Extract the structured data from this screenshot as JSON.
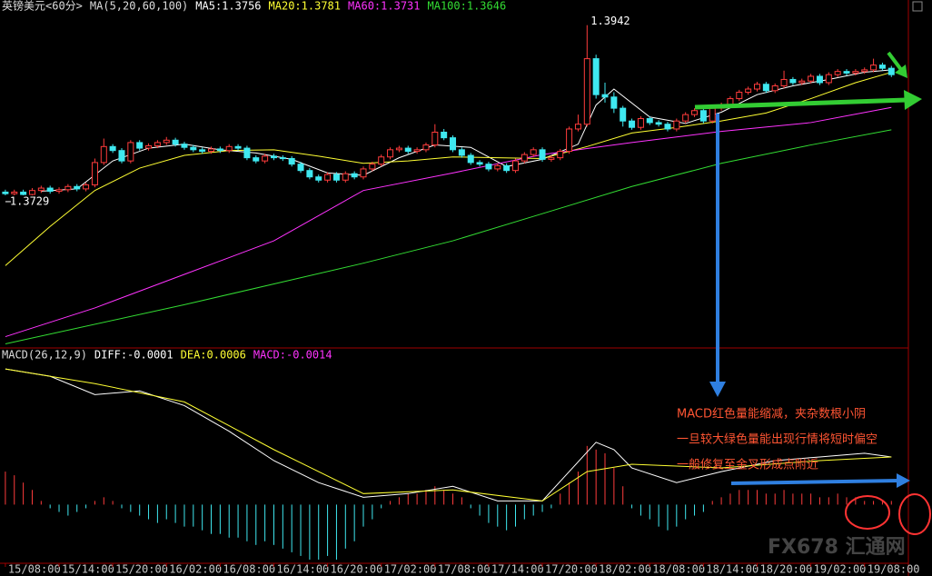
{
  "chart_data": [
    {
      "type": "candlestick",
      "title": "英镑美元<60分>",
      "indicator": "MA(5,20,60,100)",
      "xlim": [
        -0.6,
        100.9
      ],
      "xticks": [
        {
          "value": 0,
          "label": "15/08:00"
        },
        {
          "value": 6,
          "label": "15/14:00"
        },
        {
          "value": 12,
          "label": "15/20:00"
        },
        {
          "value": 18,
          "label": "16/02:00"
        },
        {
          "value": 24,
          "label": "16/08:00"
        },
        {
          "value": 30,
          "label": "16/14:00"
        },
        {
          "value": 36,
          "label": "16/20:00"
        },
        {
          "value": 42,
          "label": "17/02:00"
        },
        {
          "value": 48,
          "label": "17/08:00"
        },
        {
          "value": 54,
          "label": "17/14:00"
        },
        {
          "value": 60,
          "label": "17/20:00"
        },
        {
          "value": 66,
          "label": "18/02:00"
        },
        {
          "value": 72,
          "label": "18/08:00"
        },
        {
          "value": 78,
          "label": "18/14:00"
        },
        {
          "value": 84,
          "label": "18/20:00"
        },
        {
          "value": 90,
          "label": "19/02:00"
        },
        {
          "value": 96,
          "label": "19/08:00"
        }
      ],
      "ylim": [
        1.3539,
        1.3953
      ],
      "up_color": "#ff3c3c",
      "down_color": "#3fe8f0",
      "open": [
        1.3733,
        1.3731,
        1.3733,
        1.373,
        1.3735,
        1.3738,
        1.3734,
        1.3736,
        1.374,
        1.3737,
        1.3742,
        1.377,
        1.379,
        1.3785,
        1.3772,
        1.3795,
        1.3788,
        1.3791,
        1.3795,
        1.3798,
        1.3793,
        1.3789,
        1.3786,
        1.3784,
        1.3787,
        1.3785,
        1.379,
        1.3788,
        1.3776,
        1.3772,
        1.3778,
        1.3776,
        1.3775,
        1.3768,
        1.376,
        1.3752,
        1.3748,
        1.3755,
        1.3748,
        1.3756,
        1.3752,
        1.3762,
        1.3768,
        1.3777,
        1.3786,
        1.3788,
        1.3784,
        1.3786,
        1.3792,
        1.3808,
        1.3801,
        1.3786,
        1.3779,
        1.377,
        1.3768,
        1.3762,
        1.3766,
        1.376,
        1.3772,
        1.378,
        1.3786,
        1.3774,
        1.3776,
        1.3784,
        1.3812,
        1.3818,
        1.39,
        1.3855,
        1.3852,
        1.3838,
        1.3822,
        1.3814,
        1.3825,
        1.382,
        1.3818,
        1.3812,
        1.3822,
        1.383,
        1.3835,
        1.3822,
        1.3838,
        1.3842,
        1.385,
        1.3858,
        1.3862,
        1.3868,
        1.386,
        1.3866,
        1.3874,
        1.387,
        1.3872,
        1.3878,
        1.387,
        1.388,
        1.3884,
        1.3882,
        1.3884,
        1.3886,
        1.3892,
        1.3888
      ],
      "high": [
        1.3736,
        1.3736,
        1.3736,
        1.3738,
        1.3741,
        1.3741,
        1.3739,
        1.3743,
        1.3743,
        1.3745,
        1.3775,
        1.38,
        1.3793,
        1.3788,
        1.3798,
        1.3798,
        1.3794,
        1.3798,
        1.3802,
        1.3801,
        1.3796,
        1.3792,
        1.3789,
        1.379,
        1.379,
        1.3793,
        1.3793,
        1.3791,
        1.3779,
        1.3781,
        1.3781,
        1.3779,
        1.3778,
        1.3771,
        1.3763,
        1.3755,
        1.3758,
        1.3758,
        1.3759,
        1.3759,
        1.3765,
        1.3771,
        1.378,
        1.3789,
        1.3791,
        1.3791,
        1.3789,
        1.3795,
        1.3818,
        1.3812,
        1.3804,
        1.3789,
        1.3782,
        1.3773,
        1.3771,
        1.3769,
        1.3769,
        1.3775,
        1.3783,
        1.3789,
        1.3789,
        1.3779,
        1.3787,
        1.3815,
        1.383,
        1.3942,
        1.3905,
        1.387,
        1.3858,
        1.3841,
        1.3825,
        1.3828,
        1.3828,
        1.3823,
        1.3821,
        1.3825,
        1.3833,
        1.3838,
        1.3838,
        1.3841,
        1.3845,
        1.3853,
        1.3861,
        1.3865,
        1.3871,
        1.3871,
        1.3869,
        1.3885,
        1.3877,
        1.3875,
        1.3881,
        1.3881,
        1.3883,
        1.3887,
        1.3887,
        1.3887,
        1.3889,
        1.39,
        1.3895,
        1.3891
      ],
      "low": [
        1.3729,
        1.3729,
        1.3729,
        1.3729,
        1.3732,
        1.3731,
        1.3731,
        1.3733,
        1.3734,
        1.3734,
        1.3739,
        1.3767,
        1.3782,
        1.3769,
        1.3769,
        1.3785,
        1.3785,
        1.3788,
        1.3792,
        1.379,
        1.3786,
        1.3783,
        1.3781,
        1.3781,
        1.3782,
        1.3782,
        1.3785,
        1.3773,
        1.3769,
        1.3769,
        1.3773,
        1.3772,
        1.3765,
        1.3757,
        1.3749,
        1.3745,
        1.3745,
        1.3745,
        1.3745,
        1.3749,
        1.3749,
        1.3759,
        1.3765,
        1.3774,
        1.3783,
        1.3781,
        1.3781,
        1.3783,
        1.3789,
        1.3798,
        1.3783,
        1.3776,
        1.3767,
        1.3765,
        1.3759,
        1.3759,
        1.3757,
        1.3757,
        1.3769,
        1.3777,
        1.3771,
        1.3771,
        1.3773,
        1.3781,
        1.3809,
        1.3815,
        1.385,
        1.3845,
        1.3832,
        1.3815,
        1.3811,
        1.3811,
        1.3817,
        1.3815,
        1.3809,
        1.3809,
        1.3819,
        1.3827,
        1.3819,
        1.3819,
        1.3835,
        1.3839,
        1.3847,
        1.3855,
        1.3859,
        1.3857,
        1.3857,
        1.3863,
        1.3867,
        1.3867,
        1.3869,
        1.3867,
        1.3867,
        1.3877,
        1.3879,
        1.3879,
        1.3881,
        1.3883,
        1.3885,
        1.3877
      ],
      "close": [
        1.3731,
        1.3733,
        1.373,
        1.3735,
        1.3738,
        1.3734,
        1.3736,
        1.374,
        1.3737,
        1.3742,
        1.377,
        1.379,
        1.3785,
        1.3772,
        1.3795,
        1.3788,
        1.3791,
        1.3795,
        1.3798,
        1.3793,
        1.3789,
        1.3786,
        1.3784,
        1.3787,
        1.3785,
        1.379,
        1.3788,
        1.3776,
        1.3772,
        1.3778,
        1.3776,
        1.3775,
        1.3768,
        1.376,
        1.3752,
        1.3748,
        1.3755,
        1.3748,
        1.3756,
        1.3752,
        1.3762,
        1.3768,
        1.3777,
        1.3786,
        1.3788,
        1.3784,
        1.3786,
        1.3792,
        1.3808,
        1.3801,
        1.3786,
        1.3779,
        1.377,
        1.3768,
        1.3762,
        1.3766,
        1.376,
        1.3772,
        1.378,
        1.3786,
        1.3774,
        1.3776,
        1.3784,
        1.3812,
        1.3818,
        1.39,
        1.3855,
        1.3852,
        1.3838,
        1.3822,
        1.3814,
        1.3825,
        1.382,
        1.3818,
        1.3812,
        1.3822,
        1.383,
        1.3835,
        1.3822,
        1.3838,
        1.3842,
        1.385,
        1.3858,
        1.3862,
        1.3868,
        1.386,
        1.3866,
        1.3874,
        1.387,
        1.3872,
        1.3878,
        1.387,
        1.388,
        1.3884,
        1.3882,
        1.3884,
        1.3886,
        1.3892,
        1.3888,
        1.388
      ],
      "series": [
        {
          "name": "MA5:1.3756",
          "color": "#ffffff",
          "x": [
            4,
            8,
            12,
            16,
            20,
            24,
            28,
            32,
            36,
            40,
            44,
            48,
            52,
            56,
            60,
            64,
            66,
            68,
            72,
            76,
            80,
            84,
            88,
            92,
            96,
            99
          ],
          "values": [
            1.3734,
            1.3737,
            1.3772,
            1.3788,
            1.3793,
            1.3786,
            1.3782,
            1.3774,
            1.3757,
            1.3754,
            1.3776,
            1.3792,
            1.3789,
            1.3765,
            1.3774,
            1.3793,
            1.3842,
            1.3862,
            1.3827,
            1.3819,
            1.3833,
            1.3855,
            1.3866,
            1.3874,
            1.3883,
            1.3886
          ]
        },
        {
          "name": "MA20:1.3781",
          "color": "#ffff33",
          "x": [
            0,
            5,
            10,
            15,
            20,
            25,
            30,
            35,
            40,
            45,
            50,
            55,
            60,
            65,
            70,
            75,
            80,
            85,
            90,
            95,
            99
          ],
          "values": [
            1.3641,
            1.369,
            1.3735,
            1.3763,
            1.3779,
            1.3785,
            1.3786,
            1.3778,
            1.3769,
            1.3772,
            1.3777,
            1.3776,
            1.3775,
            1.379,
            1.3807,
            1.3814,
            1.3822,
            1.3832,
            1.385,
            1.387,
            1.3883
          ]
        },
        {
          "name": "MA60:1.3731",
          "color": "#ff33ff",
          "x": [
            0,
            10,
            20,
            30,
            40,
            50,
            60,
            70,
            80,
            90,
            99
          ],
          "values": [
            1.3552,
            1.3588,
            1.363,
            1.3672,
            1.3735,
            1.3757,
            1.378,
            1.3795,
            1.3809,
            1.382,
            1.3839
          ]
        },
        {
          "name": "MA100:1.3646",
          "color": "#33dd33",
          "x": [
            0,
            20,
            40,
            50,
            60,
            70,
            80,
            90,
            99
          ],
          "values": [
            1.3543,
            1.3592,
            1.3644,
            1.3672,
            1.3706,
            1.374,
            1.3769,
            1.3792,
            1.3811
          ]
        }
      ],
      "annotations": [
        "MACD红色量能缩减，夹杂数根小阴",
        "一旦较大绿色量能出现行情将短时偏空",
        "一般修复至金叉形成点附近"
      ],
      "watermark": "FX678 汇通网"
    },
    {
      "type": "macd",
      "title": "MACD(26,12,9)",
      "ylim": [
        -0.0016,
        0.0039
      ],
      "series": [
        {
          "name": "DIFF:-0.0001",
          "color": "#ffffff",
          "x": [
            0,
            5,
            10,
            15,
            20,
            25,
            30,
            35,
            40,
            45,
            50,
            55,
            60,
            63,
            66,
            68,
            70,
            75,
            80,
            86,
            91,
            96,
            99
          ],
          "values": [
            0.0037,
            0.0035,
            0.003,
            0.0031,
            0.0027,
            0.002,
            0.0012,
            0.0006,
            0.0002,
            0.0003,
            0.0005,
            0.0001,
            0.0001,
            0.0009,
            0.0017,
            0.0015,
            0.001,
            0.0006,
            0.0009,
            0.0012,
            0.0013,
            0.0014,
            0.0013
          ]
        },
        {
          "name": "DEA:0.0006",
          "color": "#ffff33",
          "x": [
            0,
            10,
            20,
            30,
            40,
            50,
            60,
            65,
            70,
            80,
            91,
            99
          ],
          "values": [
            0.0037,
            0.0033,
            0.0028,
            0.0015,
            0.0003,
            0.0004,
            0.0001,
            0.0009,
            0.0011,
            0.001,
            0.0012,
            0.0013
          ]
        }
      ],
      "histogram": {
        "name": "MACD:-0.0014",
        "color": "#ff33ff",
        "up_color": "#ff3c3c",
        "down_color": "#3fe8f0",
        "values": [
          0.0009,
          0.0008,
          0.0006,
          0.0004,
          0.0001,
          -0.0001,
          -0.0002,
          -0.0003,
          -0.0002,
          -0.0001,
          0.0001,
          0.0002,
          0.0001,
          -0.0001,
          -0.0002,
          -0.0003,
          -0.0004,
          -0.0005,
          -0.0004,
          -0.0005,
          -0.0006,
          -0.0006,
          -0.0007,
          -0.0008,
          -0.0008,
          -0.0009,
          -0.0009,
          -0.001,
          -0.0011,
          -0.001,
          -0.0011,
          -0.0012,
          -0.0013,
          -0.0014,
          -0.0015,
          -0.0015,
          -0.0014,
          -0.0015,
          -0.0012,
          -0.001,
          -0.0006,
          -0.0004,
          -0.0001,
          0.0001,
          0.0002,
          0.0003,
          0.0003,
          0.0004,
          0.0005,
          0.0004,
          0.0003,
          0.0002,
          -0.0001,
          -0.0003,
          -0.0005,
          -0.0006,
          -0.0007,
          -0.0006,
          -0.0004,
          -0.0003,
          -0.0002,
          -0.0001,
          0.0003,
          0.0006,
          0.0009,
          0.0016,
          0.0015,
          0.0014,
          0.001,
          0.0005,
          -0.0001,
          -0.0003,
          -0.0004,
          -0.0006,
          -0.0007,
          -0.0006,
          -0.0004,
          -0.0003,
          -0.0002,
          0.0001,
          0.0002,
          0.0003,
          0.0004,
          0.0004,
          0.0004,
          0.0003,
          0.0003,
          0.0004,
          0.0003,
          0.0003,
          0.0003,
          0.0002,
          0.0002,
          0.0003,
          0.0002,
          0.0002,
          0.0001,
          0.0001,
          0.0001,
          0.0001
        ]
      }
    }
  ]
}
